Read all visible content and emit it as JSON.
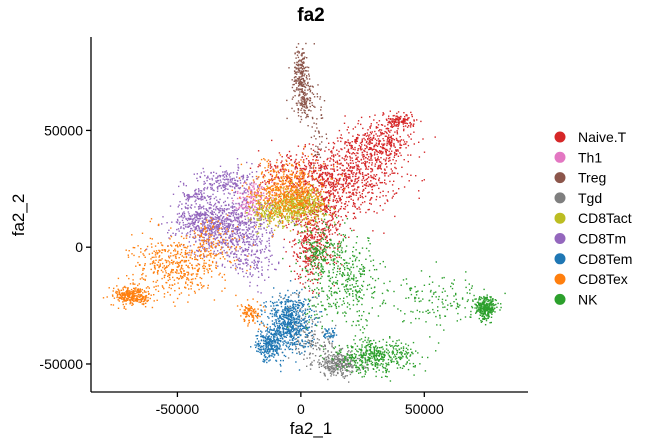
{
  "chart_data": {
    "type": "scatter",
    "title": "fa2",
    "xlabel": "fa2_1",
    "ylabel": "fa2_2",
    "xlim": [
      -85000,
      92000
    ],
    "ylim": [
      -62000,
      90000
    ],
    "xticks": [
      -50000,
      0,
      50000
    ],
    "yticks": [
      -50000,
      0,
      50000
    ],
    "xtick_labels": [
      "-50000",
      "0",
      "50000"
    ],
    "ytick_labels": [
      "-50000",
      "0",
      "50000"
    ],
    "legend_position": "right",
    "grid": false,
    "series": [
      {
        "name": "Naive.T",
        "color": "#d62728",
        "clusters": [
          {
            "cx": 20000,
            "cy": 30000,
            "sx": 10000,
            "sy": 8000,
            "n": 700
          },
          {
            "cx": 8000,
            "cy": 15000,
            "sx": 6000,
            "sy": 12000,
            "n": 450
          },
          {
            "cx": 32000,
            "cy": 45000,
            "sx": 7000,
            "sy": 5000,
            "n": 350
          },
          {
            "cx": 40000,
            "cy": 54000,
            "sx": 3000,
            "sy": 1500,
            "n": 120
          },
          {
            "cx": 3000,
            "cy": 0,
            "sx": 3000,
            "sy": 8000,
            "n": 200
          },
          {
            "cx": -5000,
            "cy": 32000,
            "sx": 6000,
            "sy": 5000,
            "n": 150
          }
        ]
      },
      {
        "name": "Th1",
        "color": "#e377c2",
        "clusters": [
          {
            "cx": -18000,
            "cy": 22000,
            "sx": 4000,
            "sy": 3000,
            "n": 120
          },
          {
            "cx": -22000,
            "cy": 17000,
            "sx": 3000,
            "sy": 2500,
            "n": 60
          }
        ]
      },
      {
        "name": "Treg",
        "color": "#8c564b",
        "clusters": [
          {
            "cx": 0,
            "cy": 74000,
            "sx": 1500,
            "sy": 6000,
            "n": 220
          },
          {
            "cx": 2000,
            "cy": 62000,
            "sx": 2500,
            "sy": 4000,
            "n": 120
          },
          {
            "cx": 7000,
            "cy": 45000,
            "sx": 2000,
            "sy": 7000,
            "n": 40
          }
        ]
      },
      {
        "name": "Tgd",
        "color": "#7f7f7f",
        "clusters": [
          {
            "cx": 15000,
            "cy": -50000,
            "sx": 5000,
            "sy": 2500,
            "n": 300
          },
          {
            "cx": 5000,
            "cy": -42000,
            "sx": 5000,
            "sy": 3000,
            "n": 100
          },
          {
            "cx": 0,
            "cy": -30000,
            "sx": 5000,
            "sy": 5000,
            "n": 60
          }
        ]
      },
      {
        "name": "CD8Tact",
        "color": "#bcbd22",
        "clusters": [
          {
            "cx": -2000,
            "cy": 18000,
            "sx": 6000,
            "sy": 3500,
            "n": 500
          },
          {
            "cx": -12000,
            "cy": 14000,
            "sx": 4000,
            "sy": 3000,
            "n": 150
          }
        ]
      },
      {
        "name": "CD8Tm",
        "color": "#9467bd",
        "clusters": [
          {
            "cx": -30000,
            "cy": 8000,
            "sx": 9000,
            "sy": 6000,
            "n": 700
          },
          {
            "cx": -40000,
            "cy": 12000,
            "sx": 6000,
            "sy": 3500,
            "n": 250
          },
          {
            "cx": -30000,
            "cy": 28000,
            "sx": 6000,
            "sy": 3000,
            "n": 200
          },
          {
            "cx": -42000,
            "cy": 22000,
            "sx": 3000,
            "sy": 2000,
            "n": 80
          },
          {
            "cx": -20000,
            "cy": -5000,
            "sx": 5000,
            "sy": 6000,
            "n": 150
          }
        ]
      },
      {
        "name": "CD8Tem",
        "color": "#1f77b4",
        "clusters": [
          {
            "cx": -5000,
            "cy": -32000,
            "sx": 4500,
            "sy": 6000,
            "n": 650
          },
          {
            "cx": -13000,
            "cy": -42000,
            "sx": 2500,
            "sy": 3500,
            "n": 250
          },
          {
            "cx": 12000,
            "cy": -37000,
            "sx": 1500,
            "sy": 1500,
            "n": 40
          }
        ]
      },
      {
        "name": "CD8Tex",
        "color": "#ff7f0e",
        "clusters": [
          {
            "cx": -68000,
            "cy": -21000,
            "sx": 4000,
            "sy": 2000,
            "n": 300
          },
          {
            "cx": -50000,
            "cy": -8000,
            "sx": 9000,
            "sy": 6000,
            "n": 450
          },
          {
            "cx": -5000,
            "cy": 24000,
            "sx": 7000,
            "sy": 6000,
            "n": 600
          },
          {
            "cx": -20000,
            "cy": -28000,
            "sx": 2500,
            "sy": 2500,
            "n": 100
          },
          {
            "cx": -35000,
            "cy": 2000,
            "sx": 6000,
            "sy": 5000,
            "n": 120
          }
        ]
      },
      {
        "name": "NK",
        "color": "#2ca02c",
        "clusters": [
          {
            "cx": 75000,
            "cy": -26000,
            "sx": 2000,
            "sy": 2500,
            "n": 300
          },
          {
            "cx": 30000,
            "cy": -47000,
            "sx": 8000,
            "sy": 3500,
            "n": 450
          },
          {
            "cx": 18000,
            "cy": -15000,
            "sx": 8000,
            "sy": 10000,
            "n": 400
          },
          {
            "cx": 55000,
            "cy": -22000,
            "sx": 10000,
            "sy": 5000,
            "n": 150
          },
          {
            "cx": 8000,
            "cy": -2000,
            "sx": 4000,
            "sy": 6000,
            "n": 150
          }
        ]
      }
    ]
  }
}
